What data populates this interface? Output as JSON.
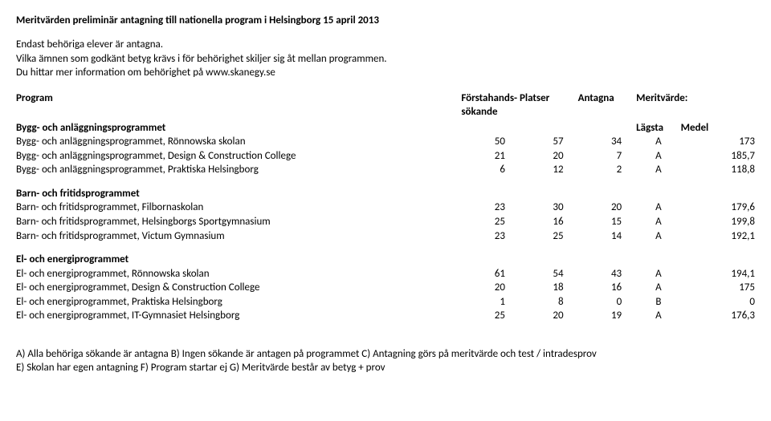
{
  "title": "Meritvärden preliminär antagning till nationella program i Helsingborg 15 april 2013",
  "intro": {
    "l1": "Endast behöriga elever är antagna.",
    "l2": "Vilka ämnen som godkänt betyg krävs i för behörighet skiljer sig åt mellan programmen.",
    "l3": "Du hittar mer information om behörighet på www.skanegy.se"
  },
  "header": {
    "program": "Program",
    "c1a": "Förstahands-",
    "c1b": "sökande",
    "c2": "Platser",
    "c3": "Antagna",
    "merit": "Meritvärde:",
    "lagsta": "Lägsta",
    "medel": "Medel"
  },
  "sections": [
    {
      "name": "Bygg- och anläggningsprogrammet",
      "rows": [
        {
          "label": "Bygg- och anläggningsprogrammet, Rönnowska skolan",
          "n1": "50",
          "n2": "57",
          "n3": "34",
          "g": "A",
          "m": "173"
        },
        {
          "label": "Bygg- och anläggningsprogrammet, Design & Construction College",
          "n1": "21",
          "n2": "20",
          "n3": "7",
          "g": "A",
          "m": "185,7"
        },
        {
          "label": "Bygg- och anläggningsprogrammet, Praktiska Helsingborg",
          "n1": "6",
          "n2": "12",
          "n3": "2",
          "g": "A",
          "m": "118,8"
        }
      ]
    },
    {
      "name": "Barn- och fritidsprogrammet",
      "rows": [
        {
          "label": "Barn- och fritidsprogrammet, Filbornaskolan",
          "n1": "23",
          "n2": "30",
          "n3": "20",
          "g": "A",
          "m": "179,6"
        },
        {
          "label": "Barn- och fritidsprogrammet, Helsingborgs Sportgymnasium",
          "n1": "25",
          "n2": "16",
          "n3": "15",
          "g": "A",
          "m": "199,8"
        },
        {
          "label": "Barn- och fritidsprogrammet, Victum Gymnasium",
          "n1": "23",
          "n2": "25",
          "n3": "14",
          "g": "A",
          "m": "192,1"
        }
      ]
    },
    {
      "name": "El- och energiprogrammet",
      "rows": [
        {
          "label": "El- och energiprogrammet, Rönnowska skolan",
          "n1": "61",
          "n2": "54",
          "n3": "43",
          "g": "A",
          "m": "194,1"
        },
        {
          "label": "El- och energiprogrammet, Design & Construction College",
          "n1": "20",
          "n2": "18",
          "n3": "16",
          "g": "A",
          "m": "175"
        },
        {
          "label": "El- och energiprogrammet, Praktiska Helsingborg",
          "n1": "1",
          "n2": "8",
          "n3": "0",
          "g": "B",
          "m": "0"
        },
        {
          "label": "El- och energiprogrammet, IT-Gymnasiet Helsingborg",
          "n1": "25",
          "n2": "20",
          "n3": "19",
          "g": "A",
          "m": "176,3"
        }
      ]
    }
  ],
  "footer": {
    "l1": "A) Alla behöriga sökande är antagna B) Ingen sökande är antagen på programmet C) Antagning görs på meritvärde och test / intradesprov",
    "l2": "E) Skolan har egen antagning F) Program startar ej G) Meritvärde består av betyg + prov"
  }
}
